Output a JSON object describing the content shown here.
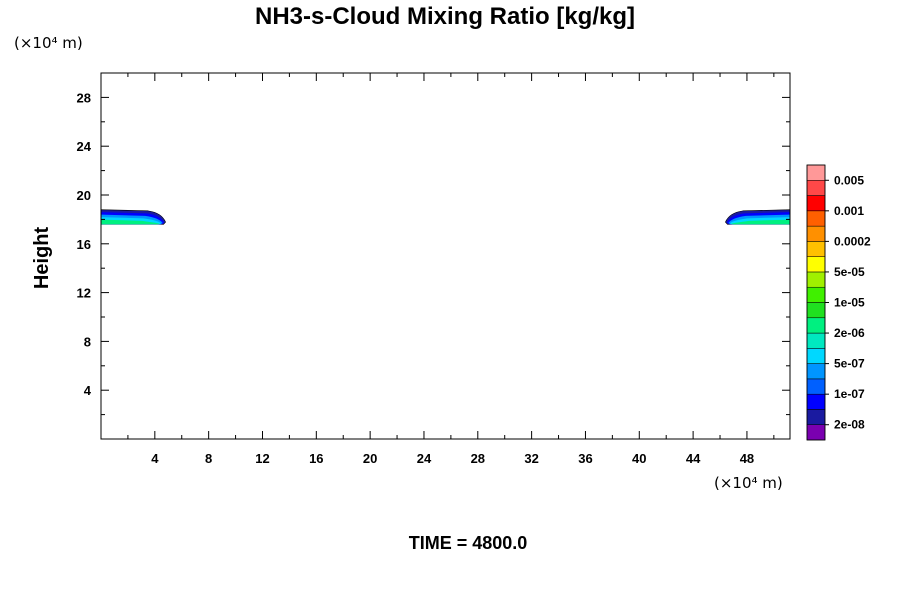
{
  "chart_data": {
    "type": "contour",
    "title": "NH3-s-Cloud Mixing Ratio [kg/kg]",
    "ylabel": "Height",
    "x_unit_label": "(×10⁴ m)",
    "y_unit_label": "(×10⁴ m)",
    "xlim": [
      0,
      51.2
    ],
    "ylim": [
      0,
      30
    ],
    "x_ticks": [
      4,
      8,
      12,
      16,
      20,
      24,
      28,
      32,
      36,
      40,
      44,
      48
    ],
    "y_ticks": [
      4,
      8,
      12,
      16,
      20,
      24,
      28
    ],
    "time_label": "TIME = 4800.0",
    "colorbar": {
      "labels": [
        "0.005",
        "0.001",
        "0.0002",
        "5e-05",
        "1e-05",
        "2e-06",
        "5e-07",
        "1e-07",
        "2e-08"
      ],
      "colors": [
        "#7a00b0",
        "#1a1aa0",
        "#0000ff",
        "#0060ff",
        "#0095ff",
        "#00d8ff",
        "#00e8c0",
        "#00f080",
        "#20e020",
        "#40f000",
        "#a0f000",
        "#ffff00",
        "#ffc000",
        "#ff9000",
        "#ff6000",
        "#ff0000",
        "#ff4848",
        "#ff9898"
      ]
    },
    "contour_regions": [
      {
        "name": "left-cloud",
        "x_range": [
          0,
          4.8
        ],
        "y_range": [
          17.6,
          18.8
        ],
        "bands": [
          {
            "level": "2e-08",
            "color": "#1a1aa0"
          },
          {
            "level": "1e-07",
            "color": "#0000ff"
          },
          {
            "level": "5e-07",
            "color": "#0095ff"
          },
          {
            "level": "2e-06",
            "color": "#00d8ff"
          },
          {
            "level": "1e-05",
            "color": "#00f080"
          }
        ]
      },
      {
        "name": "right-cloud",
        "x_range": [
          46.4,
          51.2
        ],
        "y_range": [
          17.6,
          18.8
        ],
        "bands": [
          {
            "level": "2e-08",
            "color": "#1a1aa0"
          },
          {
            "level": "1e-07",
            "color": "#0000ff"
          },
          {
            "level": "5e-07",
            "color": "#0095ff"
          },
          {
            "level": "2e-06",
            "color": "#00d8ff"
          },
          {
            "level": "1e-05",
            "color": "#00f080"
          }
        ]
      }
    ]
  }
}
